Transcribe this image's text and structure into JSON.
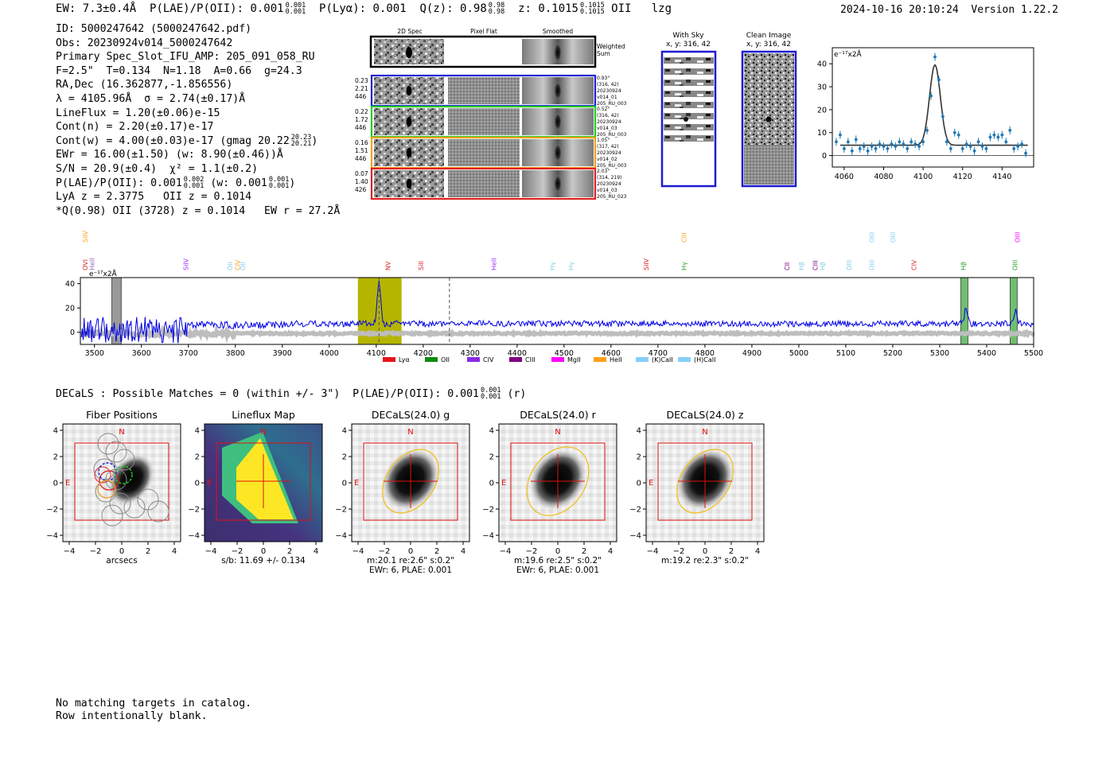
{
  "header": {
    "ew_label": "EW: 7.3±0.4Å",
    "plae_label": "P(LAE)/P(OII): 0.001",
    "plae_hi": "0.001",
    "plae_lo": "0.001",
    "plya_label": "P(Lyα): 0.001",
    "q_label": "Q(z): 0.98",
    "q_hi": "0.98",
    "q_lo": "0.98",
    "z_label": "z: 0.1015",
    "z_hi": "0.1015",
    "z_lo": "0.1015",
    "z_line": "OII",
    "flag": "lzg",
    "timestamp": "2024-10-16 20:10:24",
    "version": "Version 1.22.2"
  },
  "info": {
    "id": "ID: 5000247642 (5000247642.pdf)",
    "obs": "Obs: 20230924v014_5000247642",
    "primary": "Primary Spec_Slot_IFU_AMP: 205_091_058_RU",
    "fit": "F=2.5\"  T=0.134  N=1.18  A=0.66  g=24.3",
    "radec": "RA,Dec (16.362877,-1.856556)",
    "lambda": "λ = 4105.96Å  σ = 2.74(±0.17)Å",
    "lineflux": "LineFlux = 1.20(±0.06)e-15",
    "cont_n": "Cont(n) = 2.20(±0.17)e-17",
    "cont_w": "Cont(w) = 4.00(±0.03)e-17 (gmag 20.22",
    "gmag_hi": "20.23",
    "gmag_lo": "20.21",
    "cont_w_end": ")",
    "ewr": "EWr = 16.00(±1.50) (w: 8.90(±0.46))Å",
    "sn": "S/N = 20.9(±0.4)  χ² = 1.1(±0.2)",
    "plae": "P(LAE)/P(OII): 0.001",
    "plae_hi": "0.002",
    "plae_lo": "0.001",
    "plae_w": "(w: 0.001",
    "plae_w_hi": "0.001",
    "plae_w_lo": "0.001",
    "plae_w_end": ")",
    "lya": "LyA z = 2.3775   OII z = 0.1014",
    "q": "*Q(0.98) OII (3728) z = 0.1014   EW r = 27.2Å"
  },
  "cutouts": {
    "col_labels": [
      "2D Spec",
      "Pixel Flat",
      "Smoothed"
    ],
    "weighted_label": [
      "Weighted",
      "Sum"
    ],
    "rows": [
      {
        "color": "#1f1fd6",
        "left": [
          "0.23",
          "2.21",
          "446"
        ],
        "right": [
          "0.93\"",
          "(316, 42)",
          "20230924",
          "v014_01",
          "205_RU_003"
        ]
      },
      {
        "color": "#22cc22",
        "left": [
          "0.22",
          "1.72",
          "446"
        ],
        "right": [
          "0.52\"",
          "(316, 42)",
          "20230924",
          "v014_03",
          "205_RU_003"
        ]
      },
      {
        "color": "#f0a020",
        "left": [
          "0.16",
          "1.51",
          "446"
        ],
        "right": [
          "1.05\"",
          "(317, 42)",
          "20230924",
          "v014_02",
          "205_RU_003"
        ]
      },
      {
        "color": "#e02020",
        "left": [
          "0.07",
          "1.40",
          "426"
        ],
        "right": [
          "2.03\"",
          "(314, 219)",
          "20230924",
          "v014_03",
          "205_RU_023"
        ]
      }
    ]
  },
  "sky": {
    "with_sky_title": "With Sky",
    "with_sky_coord": "x, y: 316, 42",
    "clean_title": "Clean Image",
    "clean_coord": "x, y: 316, 42"
  },
  "chart_data": [
    {
      "type": "line",
      "name": "line-fit-zoom",
      "ylabel": "e⁻¹⁷x2Å",
      "xlim": [
        4054,
        4156
      ],
      "ylim": [
        -5,
        47
      ],
      "xticks": [
        4060,
        4080,
        4100,
        4120,
        4140
      ],
      "yticks": [
        0,
        10,
        20,
        30,
        40
      ],
      "fit_model": {
        "center": 4106,
        "sigma": 2.74,
        "amplitude": 35,
        "continuum": 4.5
      },
      "series": [
        {
          "name": "data",
          "x": [
            4056,
            4058,
            4060,
            4062,
            4064,
            4066,
            4068,
            4070,
            4072,
            4074,
            4076,
            4078,
            4080,
            4082,
            4084,
            4086,
            4088,
            4090,
            4092,
            4094,
            4096,
            4098,
            4100,
            4102,
            4104,
            4106,
            4108,
            4110,
            4112,
            4114,
            4116,
            4118,
            4120,
            4122,
            4124,
            4126,
            4128,
            4130,
            4132,
            4134,
            4136,
            4138,
            4140,
            4142,
            4144,
            4146,
            4148,
            4150,
            4152
          ],
          "y": [
            6,
            9,
            3,
            6,
            2,
            7,
            3,
            4,
            2,
            4,
            3,
            5,
            4,
            3,
            5,
            4,
            6,
            5,
            3,
            6,
            5,
            4,
            6,
            11,
            26,
            43,
            33,
            17,
            6,
            3,
            10,
            9,
            3,
            5,
            4,
            2,
            6,
            4,
            3,
            8,
            9,
            8,
            9,
            6,
            11,
            3,
            4,
            5,
            1
          ]
        }
      ]
    },
    {
      "type": "line",
      "name": "full-spectrum",
      "ylabel": "e⁻¹⁷x2Å",
      "xlim": [
        3470,
        5500
      ],
      "ylim": [
        -10,
        45
      ],
      "xticks": [
        3500,
        3600,
        3700,
        3800,
        3900,
        4000,
        4100,
        4200,
        4300,
        4400,
        4500,
        4600,
        4700,
        4800,
        4900,
        5000,
        5100,
        5200,
        5300,
        5400,
        5500
      ],
      "yticks": [
        0,
        20,
        40
      ],
      "highlight_band": [
        4061,
        4154
      ],
      "dashed_lines": [
        4106,
        4256
      ],
      "line_labels": [
        {
          "text": "OVI",
          "x": 3470,
          "row": 0,
          "color": "#d62728"
        },
        {
          "text": "HeII",
          "x": 3500,
          "row": 0,
          "color": "#9467bd"
        },
        {
          "text": "SiIV",
          "x": 3480,
          "row": 1,
          "color": "#ff9f1c"
        },
        {
          "text": "SiIV",
          "x": 3700,
          "row": 0,
          "color": "#9b30ff"
        },
        {
          "text": "OII",
          "x": 3794,
          "row": 0,
          "color": "#87ceeb"
        },
        {
          "text": "CIV",
          "x": 3810,
          "row": 0,
          "color": "#ff9f1c"
        },
        {
          "text": "OII",
          "x": 3821,
          "row": 0,
          "color": "#87ceeb"
        },
        {
          "text": "NV",
          "x": 4130,
          "row": 0,
          "color": "#d62728"
        },
        {
          "text": "SiII",
          "x": 4200,
          "row": 0,
          "color": "#d62728"
        },
        {
          "text": "HeII",
          "x": 4355,
          "row": 0,
          "color": "#9b30ff"
        },
        {
          "text": "Hγ",
          "x": 4480,
          "row": 0,
          "color": "#87ceeb"
        },
        {
          "text": "Hγ",
          "x": 4520,
          "row": 0,
          "color": "#87ceeb"
        },
        {
          "text": "SiIV",
          "x": 4680,
          "row": 0,
          "color": "#d62728"
        },
        {
          "text": "CIII",
          "x": 4760,
          "row": 1,
          "color": "#ff9f1c"
        },
        {
          "text": "Hγ",
          "x": 4760,
          "row": 0,
          "color": "#2ca02c"
        },
        {
          "text": "CII",
          "x": 4980,
          "row": 0,
          "color": "#800080"
        },
        {
          "text": "Hβ",
          "x": 5010,
          "row": 0,
          "color": "#87ceeb"
        },
        {
          "text": "CIII",
          "x": 5040,
          "row": 0,
          "color": "#800080"
        },
        {
          "text": "Hβ",
          "x": 5055,
          "row": 0,
          "color": "#87ceeb"
        },
        {
          "text": "OIII",
          "x": 5112,
          "row": 0,
          "color": "#87ceeb"
        },
        {
          "text": "OIII",
          "x": 5160,
          "row": 0,
          "color": "#87ceeb"
        },
        {
          "text": "OIII",
          "x": 5160,
          "row": 1,
          "color": "#87ceeb"
        },
        {
          "text": "OIII",
          "x": 5205,
          "row": 1,
          "color": "#87ceeb"
        },
        {
          "text": "CIV",
          "x": 5250,
          "row": 0,
          "color": "#d62728"
        },
        {
          "text": "Hβ",
          "x": 5355,
          "row": 0,
          "color": "#2ca02c"
        },
        {
          "text": "OIII",
          "x": 5465,
          "row": 0,
          "color": "#2ca02c"
        },
        {
          "text": "OIII",
          "x": 5470,
          "row": 1,
          "color": "#ff00ff"
        }
      ],
      "legend": [
        {
          "name": "Lyα",
          "color": "#e8141c"
        },
        {
          "name": "OII",
          "color": "#0e8a0e"
        },
        {
          "name": "CIV",
          "color": "#8a2be2"
        },
        {
          "name": "CIII",
          "color": "#800080"
        },
        {
          "name": "MgII",
          "color": "#ff00ff"
        },
        {
          "name": "HeII",
          "color": "#ff9f1c"
        },
        {
          "name": "(K)CaII",
          "color": "#87cefa"
        },
        {
          "name": "(H)CaII",
          "color": "#87cefa"
        }
      ]
    }
  ],
  "decals": {
    "summary": "DECaLS : Possible Matches = 0 (within +/- 3\")  P(LAE)/P(OII): 0.001",
    "summary_hi": "0.001",
    "summary_lo": "0.001",
    "summary_end": "(r)",
    "axis_ticks": [
      "−4",
      "−2",
      "0",
      "2",
      "4"
    ],
    "panels": [
      {
        "title": "Fiber Positions",
        "caption1": "arcsecs",
        "caption2": ""
      },
      {
        "title": "Lineflux Map",
        "caption1": "s/b: 11.69 +/- 0.134",
        "caption2": ""
      },
      {
        "title": "DECaLS(24.0) g",
        "caption1": "m:20.1   re:2.6\"  s:0.2\"",
        "caption2": "EWr: 6, PLAE: 0.001"
      },
      {
        "title": "DECaLS(24.0) r",
        "caption1": "m:19.6   re:2.5\"  s:0.2\"",
        "caption2": "EWr: 6, PLAE: 0.001"
      },
      {
        "title": "DECaLS(24.0) z",
        "caption1": "m:19.2   re:2.3\"  s:0.2\"",
        "caption2": ""
      }
    ],
    "north": "N",
    "east": "E"
  },
  "footer": {
    "line1": "No matching targets in catalog.",
    "line2": "Row intentionally blank."
  }
}
